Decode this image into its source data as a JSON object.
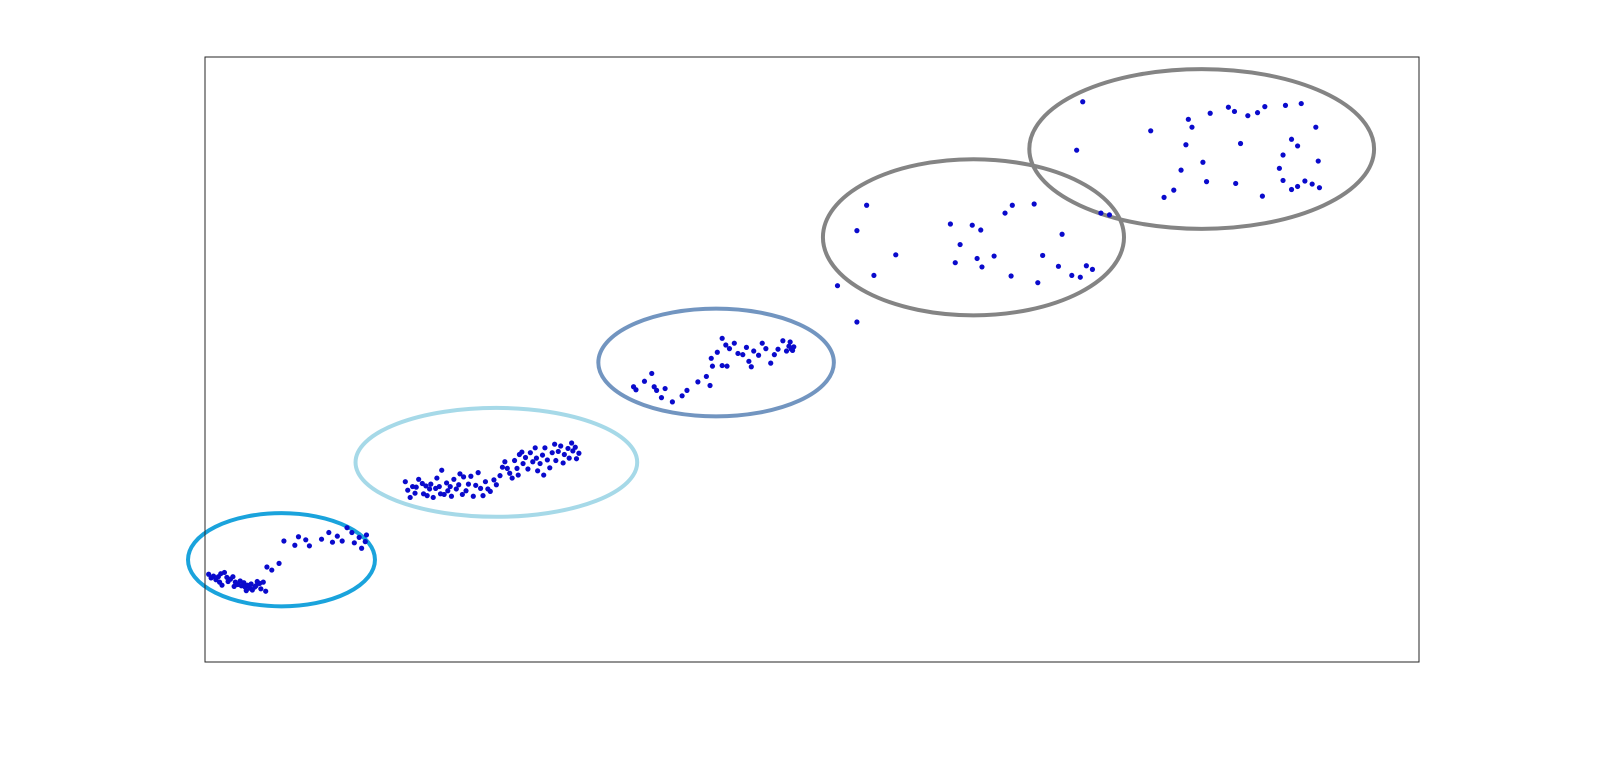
{
  "chart_data": {
    "type": "scatter",
    "title": "",
    "xlabel": "",
    "ylabel": "",
    "xlim": [
      0,
      100
    ],
    "ylim": [
      0,
      100
    ],
    "grid": false,
    "axes_box": true,
    "ticks_visible": false,
    "marker_color": "#0a0acc",
    "series": [
      {
        "points": [
          [
            0.3,
            14.5
          ],
          [
            0.5,
            13.9
          ],
          [
            0.7,
            14.2
          ],
          [
            0.9,
            13.6
          ],
          [
            1.1,
            14.1
          ],
          [
            1.2,
            13.2
          ],
          [
            1.4,
            12.7
          ],
          [
            1.3,
            14.6
          ],
          [
            1.6,
            14.8
          ],
          [
            1.8,
            14.0
          ],
          [
            1.9,
            13.3
          ],
          [
            2.1,
            13.7
          ],
          [
            2.3,
            14.1
          ],
          [
            2.5,
            13.2
          ],
          [
            2.4,
            12.5
          ],
          [
            2.7,
            12.8
          ],
          [
            2.9,
            13.4
          ],
          [
            3.0,
            12.6
          ],
          [
            3.2,
            13.1
          ],
          [
            3.3,
            12.4
          ],
          [
            3.5,
            12.7
          ],
          [
            3.4,
            11.8
          ],
          [
            3.7,
            12.2
          ],
          [
            3.8,
            12.9
          ],
          [
            3.9,
            11.9
          ],
          [
            4.1,
            12.4
          ],
          [
            4.2,
            12.6
          ],
          [
            4.3,
            13.3
          ],
          [
            4.5,
            13.0
          ],
          [
            4.6,
            12.1
          ],
          [
            4.8,
            13.2
          ],
          [
            5.0,
            11.7
          ],
          [
            5.1,
            15.7
          ],
          [
            5.5,
            15.2
          ],
          [
            6.1,
            16.3
          ],
          [
            6.5,
            20.0
          ],
          [
            7.4,
            19.3
          ],
          [
            7.7,
            20.7
          ],
          [
            8.3,
            20.2
          ],
          [
            8.6,
            19.2
          ],
          [
            9.6,
            20.3
          ],
          [
            10.2,
            21.4
          ],
          [
            10.5,
            19.8
          ],
          [
            10.9,
            20.8
          ],
          [
            11.3,
            20.0
          ],
          [
            11.7,
            22.2
          ],
          [
            12.1,
            21.4
          ],
          [
            12.3,
            19.7
          ],
          [
            12.7,
            20.6
          ],
          [
            12.9,
            18.8
          ],
          [
            13.2,
            19.9
          ],
          [
            13.3,
            21.0
          ],
          [
            16.5,
            29.8
          ],
          [
            16.7,
            28.4
          ],
          [
            16.9,
            27.2
          ],
          [
            17.1,
            29.0
          ],
          [
            17.3,
            27.9
          ],
          [
            17.4,
            28.9
          ],
          [
            17.6,
            30.2
          ],
          [
            17.9,
            29.5
          ],
          [
            18.0,
            27.8
          ],
          [
            18.2,
            29.1
          ],
          [
            18.3,
            27.5
          ],
          [
            18.5,
            28.6
          ],
          [
            18.6,
            29.4
          ],
          [
            18.8,
            27.2
          ],
          [
            19.0,
            28.7
          ],
          [
            19.1,
            30.4
          ],
          [
            19.3,
            29.0
          ],
          [
            19.4,
            27.8
          ],
          [
            19.5,
            31.7
          ],
          [
            19.7,
            27.7
          ],
          [
            19.9,
            29.6
          ],
          [
            20.0,
            28.3
          ],
          [
            20.2,
            29.0
          ],
          [
            20.3,
            27.4
          ],
          [
            20.5,
            30.2
          ],
          [
            20.7,
            28.6
          ],
          [
            20.9,
            29.3
          ],
          [
            21.0,
            31.1
          ],
          [
            21.2,
            27.7
          ],
          [
            21.3,
            30.6
          ],
          [
            21.5,
            28.3
          ],
          [
            21.7,
            29.4
          ],
          [
            21.9,
            30.7
          ],
          [
            22.1,
            27.4
          ],
          [
            22.3,
            29.2
          ],
          [
            22.5,
            31.3
          ],
          [
            22.7,
            28.7
          ],
          [
            22.9,
            27.5
          ],
          [
            23.1,
            29.8
          ],
          [
            23.3,
            28.6
          ],
          [
            23.5,
            28.2
          ],
          [
            23.8,
            30.1
          ],
          [
            24.0,
            29.3
          ],
          [
            24.3,
            30.8
          ],
          [
            24.5,
            32.2
          ],
          [
            24.7,
            33.1
          ],
          [
            24.9,
            32.0
          ],
          [
            25.1,
            31.2
          ],
          [
            25.3,
            30.4
          ],
          [
            25.5,
            33.3
          ],
          [
            25.7,
            32.0
          ],
          [
            25.8,
            30.9
          ],
          [
            25.9,
            34.3
          ],
          [
            26.1,
            34.7
          ],
          [
            26.2,
            32.8
          ],
          [
            26.4,
            33.8
          ],
          [
            26.6,
            31.9
          ],
          [
            26.8,
            34.6
          ],
          [
            27.0,
            33.1
          ],
          [
            27.2,
            35.4
          ],
          [
            27.3,
            33.7
          ],
          [
            27.4,
            31.6
          ],
          [
            27.6,
            32.8
          ],
          [
            27.8,
            34.2
          ],
          [
            27.9,
            30.9
          ],
          [
            28.0,
            35.4
          ],
          [
            28.2,
            33.4
          ],
          [
            28.4,
            32.1
          ],
          [
            28.6,
            34.6
          ],
          [
            28.8,
            36.0
          ],
          [
            28.9,
            33.3
          ],
          [
            29.1,
            34.8
          ],
          [
            29.3,
            35.7
          ],
          [
            29.5,
            32.9
          ],
          [
            29.6,
            34.3
          ],
          [
            29.9,
            35.3
          ],
          [
            30.0,
            33.7
          ],
          [
            30.2,
            36.2
          ],
          [
            30.3,
            34.9
          ],
          [
            30.5,
            35.5
          ],
          [
            30.6,
            33.6
          ],
          [
            30.8,
            34.5
          ],
          [
            35.3,
            45.5
          ],
          [
            35.5,
            45.0
          ],
          [
            36.2,
            46.4
          ],
          [
            36.8,
            47.7
          ],
          [
            37.0,
            45.5
          ],
          [
            37.2,
            44.9
          ],
          [
            37.6,
            43.7
          ],
          [
            37.9,
            45.2
          ],
          [
            38.5,
            43.0
          ],
          [
            39.3,
            44.0
          ],
          [
            39.7,
            44.9
          ],
          [
            40.6,
            46.3
          ],
          [
            41.3,
            47.2
          ],
          [
            41.8,
            48.9
          ],
          [
            41.6,
            45.7
          ],
          [
            42.6,
            49.0
          ],
          [
            43.0,
            48.9
          ],
          [
            41.7,
            50.2
          ],
          [
            42.2,
            51.2
          ],
          [
            42.6,
            53.5
          ],
          [
            42.9,
            52.4
          ],
          [
            43.2,
            51.8
          ],
          [
            43.6,
            52.7
          ],
          [
            43.9,
            51.0
          ],
          [
            44.3,
            50.8
          ],
          [
            44.6,
            52.0
          ],
          [
            44.8,
            49.7
          ],
          [
            45.0,
            48.8
          ],
          [
            45.2,
            51.4
          ],
          [
            45.6,
            50.7
          ],
          [
            45.9,
            52.7
          ],
          [
            46.2,
            51.8
          ],
          [
            46.6,
            49.4
          ],
          [
            46.9,
            50.8
          ],
          [
            47.2,
            51.7
          ],
          [
            47.6,
            53.1
          ],
          [
            47.9,
            51.4
          ],
          [
            48.1,
            52.2
          ],
          [
            48.2,
            52.9
          ],
          [
            48.3,
            51.7
          ],
          [
            48.4,
            51.5
          ],
          [
            48.5,
            52.1
          ],
          [
            53.7,
            56.2
          ],
          [
            52.1,
            62.2
          ],
          [
            55.1,
            63.9
          ],
          [
            53.7,
            71.3
          ],
          [
            54.5,
            75.5
          ],
          [
            56.9,
            67.3
          ],
          [
            61.4,
            72.4
          ],
          [
            61.8,
            66.0
          ],
          [
            62.2,
            69.0
          ],
          [
            63.2,
            72.2
          ],
          [
            63.9,
            71.4
          ],
          [
            63.6,
            66.7
          ],
          [
            64.0,
            65.3
          ],
          [
            65.0,
            67.1
          ],
          [
            65.9,
            74.2
          ],
          [
            66.5,
            75.5
          ],
          [
            66.4,
            63.8
          ],
          [
            68.3,
            75.7
          ],
          [
            68.6,
            62.7
          ],
          [
            69.0,
            67.2
          ],
          [
            70.3,
            65.4
          ],
          [
            70.6,
            70.7
          ],
          [
            71.4,
            63.9
          ],
          [
            72.1,
            63.6
          ],
          [
            72.6,
            65.5
          ],
          [
            73.1,
            64.9
          ],
          [
            73.8,
            74.2
          ],
          [
            74.5,
            73.9
          ],
          [
            71.8,
            84.6
          ],
          [
            72.3,
            92.6
          ],
          [
            77.9,
            87.8
          ],
          [
            79.0,
            76.8
          ],
          [
            79.8,
            78.0
          ],
          [
            80.4,
            81.3
          ],
          [
            80.8,
            85.5
          ],
          [
            81.3,
            88.4
          ],
          [
            81.0,
            89.7
          ],
          [
            82.2,
            82.6
          ],
          [
            82.5,
            79.4
          ],
          [
            82.8,
            90.7
          ],
          [
            84.3,
            91.7
          ],
          [
            84.8,
            91.0
          ],
          [
            85.3,
            85.7
          ],
          [
            84.9,
            79.1
          ],
          [
            85.9,
            90.3
          ],
          [
            86.7,
            90.8
          ],
          [
            87.3,
            91.8
          ],
          [
            87.1,
            77.0
          ],
          [
            88.5,
            81.6
          ],
          [
            88.8,
            79.6
          ],
          [
            90.0,
            78.6
          ],
          [
            89.5,
            78.1
          ],
          [
            90.6,
            79.5
          ],
          [
            91.5,
            88.4
          ],
          [
            91.7,
            82.8
          ],
          [
            89.0,
            92.0
          ],
          [
            90.3,
            92.3
          ],
          [
            91.2,
            79.0
          ],
          [
            91.8,
            78.4
          ],
          [
            89.5,
            86.4
          ],
          [
            88.8,
            83.8
          ],
          [
            90.0,
            85.3
          ]
        ]
      }
    ],
    "ellipses": [
      {
        "color": "#1aa3dc",
        "center": [
          6.3,
          16.9
        ],
        "radii": [
          7.7,
          7.7
        ]
      },
      {
        "color": "#a6d9e8",
        "center": [
          24.0,
          33.0
        ],
        "radii": [
          11.6,
          9.0
        ]
      },
      {
        "color": "#7295c0",
        "center": [
          42.1,
          49.5
        ],
        "radii": [
          9.7,
          8.9
        ]
      },
      {
        "color": "#848484",
        "center": [
          63.3,
          70.2
        ],
        "radii": [
          12.4,
          12.9
        ]
      },
      {
        "color": "#848484",
        "center": [
          82.1,
          84.8
        ],
        "radii": [
          14.2,
          13.2
        ]
      }
    ]
  }
}
